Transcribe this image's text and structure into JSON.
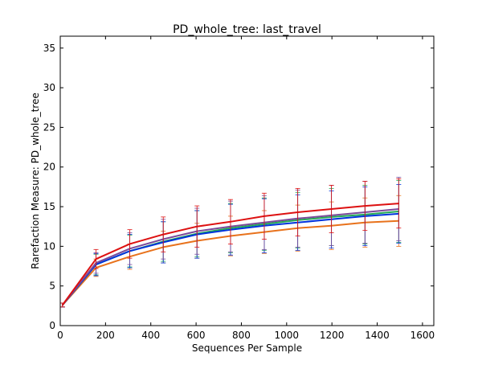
{
  "chart_data": {
    "type": "line",
    "title": "PD_whole_tree: last_travel",
    "xlabel": "Sequences Per Sample",
    "ylabel": "Rarefaction Measure: PD_whole_tree",
    "xlim": [
      0,
      1650
    ],
    "ylim": [
      0,
      36.5
    ],
    "xticks": [
      0,
      200,
      400,
      600,
      800,
      1000,
      1200,
      1400,
      1600
    ],
    "yticks": [
      0,
      5,
      10,
      15,
      20,
      25,
      30,
      35
    ],
    "grid": false,
    "legend": "none",
    "x": [
      10,
      158,
      307,
      455,
      604,
      752,
      901,
      1049,
      1198,
      1346,
      1495
    ],
    "series": [
      {
        "color": "#e8721c",
        "values": [
          2.6,
          7.3,
          8.7,
          9.9,
          10.7,
          11.3,
          11.8,
          12.3,
          12.6,
          13.0,
          13.2
        ],
        "err": [
          0.25,
          1.1,
          1.6,
          2.0,
          2.2,
          2.5,
          2.7,
          2.9,
          3.0,
          3.1,
          3.2
        ]
      },
      {
        "color": "#22aa55",
        "values": [
          2.6,
          7.7,
          9.4,
          10.6,
          11.6,
          12.3,
          12.8,
          13.3,
          13.7,
          14.0,
          14.4
        ],
        "err": [
          0.25,
          1.3,
          2.0,
          2.5,
          2.9,
          3.1,
          3.3,
          3.5,
          3.6,
          3.7,
          3.9
        ]
      },
      {
        "color": "#0033dd",
        "values": [
          2.6,
          7.7,
          9.4,
          10.5,
          11.5,
          12.1,
          12.6,
          13.0,
          13.4,
          13.8,
          14.1
        ],
        "err": [
          0.25,
          1.4,
          2.1,
          2.6,
          3.0,
          3.2,
          3.4,
          3.5,
          3.6,
          3.7,
          3.7
        ]
      },
      {
        "color": "#7a4a9a",
        "values": [
          2.6,
          7.9,
          9.7,
          10.9,
          11.9,
          12.5,
          13.0,
          13.5,
          13.9,
          14.3,
          14.7
        ],
        "err": [
          0.25,
          1.3,
          2.0,
          2.5,
          2.9,
          3.2,
          3.4,
          3.6,
          3.8,
          3.9,
          4.0
        ]
      },
      {
        "color": "#dd1111",
        "values": [
          2.6,
          8.4,
          10.3,
          11.5,
          12.5,
          13.1,
          13.8,
          14.3,
          14.7,
          15.1,
          15.4
        ],
        "err": [
          0.25,
          1.2,
          1.8,
          2.2,
          2.6,
          2.8,
          2.9,
          3.0,
          3.0,
          3.1,
          3.1
        ]
      }
    ]
  }
}
